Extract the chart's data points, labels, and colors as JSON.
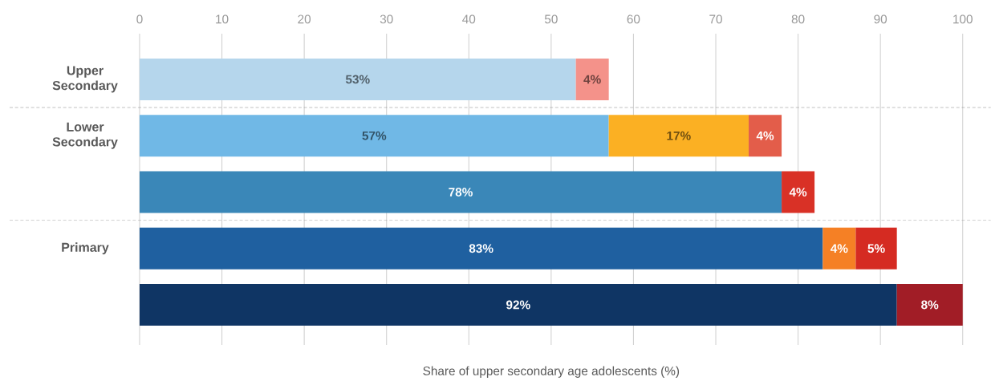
{
  "chart_data": {
    "type": "bar",
    "orientation": "horizontal",
    "stacked": true,
    "categories": [
      "Upper Secondary",
      "Lower Secondary",
      null,
      "Primary",
      null
    ],
    "xlabel": "Share of upper secondary age adolescents (%)",
    "xlim": [
      0,
      100
    ],
    "xticks": [
      0,
      10,
      20,
      30,
      40,
      50,
      60,
      70,
      80,
      90,
      100
    ],
    "grid": "x",
    "tick_labels": "x",
    "series": [
      {
        "values": [
          53,
          57,
          78,
          83,
          92
        ],
        "colors": [
          "#b5d6ec",
          "#70b8e6",
          "#3a87b8",
          "#1f60a0",
          "#0f3564"
        ],
        "value_labels": [
          "53%",
          "57%",
          "78%",
          "83%",
          "92%"
        ]
      },
      {
        "values": [
          null,
          17,
          null,
          4,
          null
        ],
        "colors": [
          null,
          "#fbb023",
          null,
          "#f58025",
          null
        ],
        "value_labels": [
          null,
          "17%",
          null,
          "4%",
          null
        ]
      },
      {
        "values": [
          4,
          4,
          4,
          5,
          8
        ],
        "colors": [
          "#f4928a",
          "#e35d4a",
          "#d93126",
          "#d52b22",
          "#a11d26"
        ],
        "value_labels": [
          "4%",
          "4%",
          "4%",
          "5%",
          "8%"
        ]
      }
    ]
  }
}
